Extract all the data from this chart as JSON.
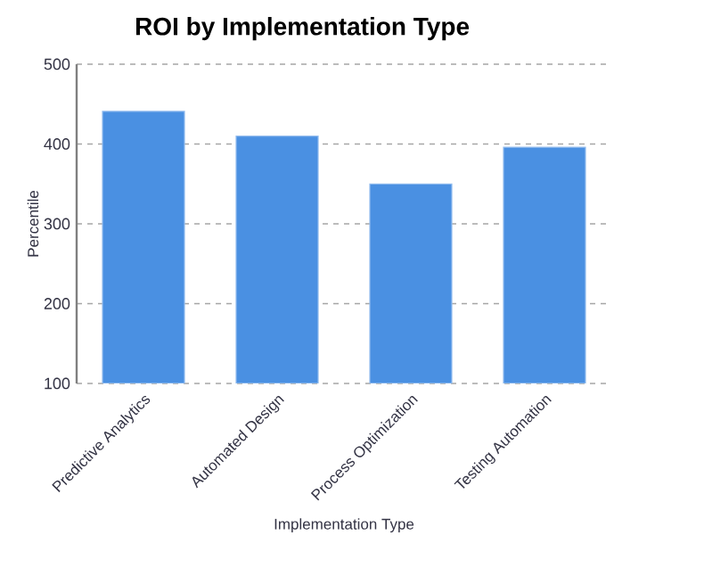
{
  "chart_data": {
    "type": "bar",
    "title": "ROI by Implementation Type",
    "xlabel": "Implementation Type",
    "ylabel": "Percentile",
    "categories": [
      "Predictive Analytics",
      "Automated Design",
      "Process Optimization",
      "Testing Automation"
    ],
    "values": [
      441,
      410,
      350,
      396
    ],
    "color": "#4a90e2",
    "ylim": [
      100,
      500
    ],
    "yticks": [
      100,
      200,
      300,
      400,
      500
    ],
    "grid": "y"
  }
}
